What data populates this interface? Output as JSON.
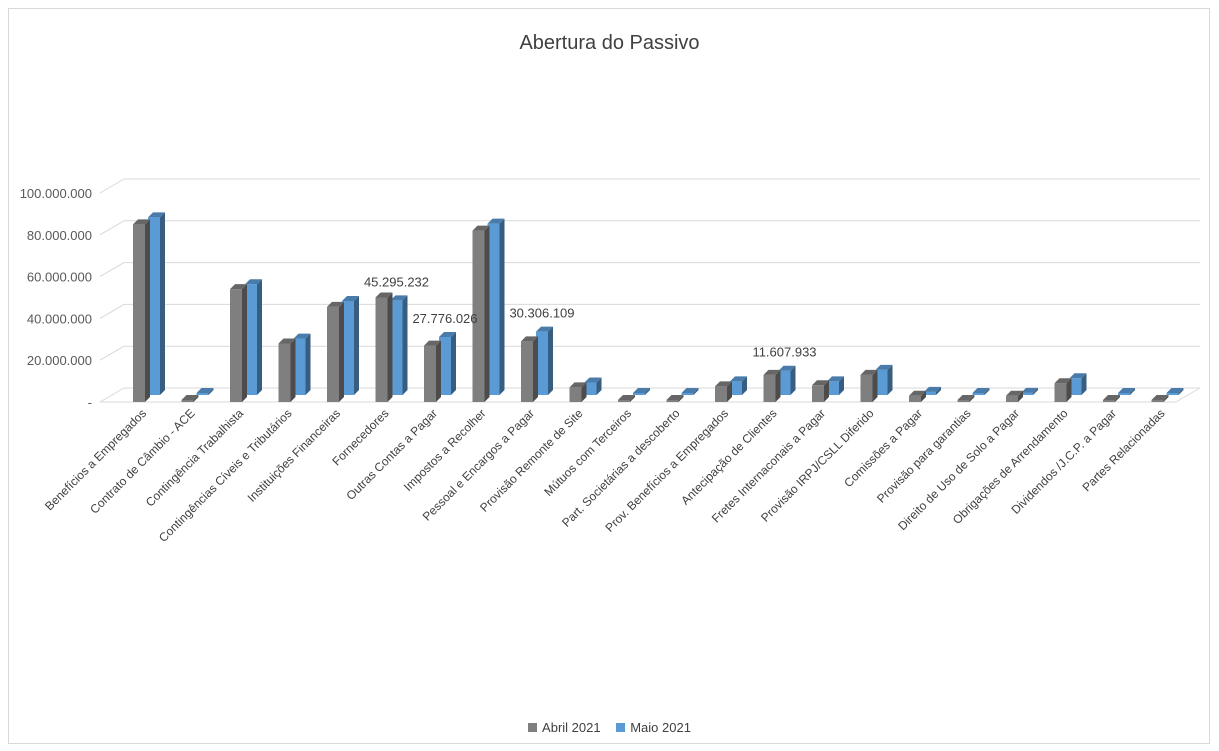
{
  "chart_data": {
    "type": "bar",
    "title": "Abertura do Passivo",
    "categories": [
      "Benefícios a Empregados",
      "Contrato de Câmbio - ACE",
      "Contingência Trabalhista",
      "Contingências Cíveis e Tributários",
      "Instituições Financeiras",
      "Fornecedores",
      "Outras Contas a Pagar",
      "Impostos a Recolher",
      "Pessoal e Encargos a Pagar",
      "Provisão Remonte de Site",
      "Mútuos com Terceiros",
      "Part. Societárias a descoberto",
      "Prov. Benefícios a Empregados",
      "Antecipação de Clientes",
      "Fretes Internaconais a Pagar",
      "Provisão IRPJ/CSLL Diferido",
      "Comissões a Pagar",
      "Provisão para garantias",
      "Direito de Uso de Solo a Pagar",
      "Obrigações de Arrendamento",
      "Dividendos /J.C.P. a Pagar",
      "Partes Relacionadas"
    ],
    "series": [
      {
        "name": "Abril 2021",
        "color": "#7f7f7f",
        "values": [
          85000000,
          0,
          54000000,
          28000000,
          45500000,
          50000000,
          27000000,
          82000000,
          29000000,
          7000000,
          0,
          0,
          7500000,
          13000000,
          8000000,
          13000000,
          3000000,
          0,
          3000000,
          9000000,
          0,
          0
        ]
      },
      {
        "name": "Maio 2021",
        "color": "#5b9bd5",
        "values": [
          85000000,
          0,
          53000000,
          27000000,
          45000000,
          45295232,
          27776026,
          82000000,
          30306109,
          6000000,
          0,
          0,
          6500000,
          11607933,
          6500000,
          12000000,
          1500000,
          0,
          1000000,
          8000000,
          0,
          0
        ]
      }
    ],
    "data_labels": [
      "45.295.232",
      "27.776.026",
      "30.306.109",
      "11.607.933"
    ],
    "y_ticks": [
      "-",
      "20.000.000",
      "40.000.000",
      "60.000.000",
      "80.000.000",
      "100.000.000"
    ],
    "ylim": [
      0,
      100000000
    ],
    "grid": true,
    "legend": "bottom"
  }
}
